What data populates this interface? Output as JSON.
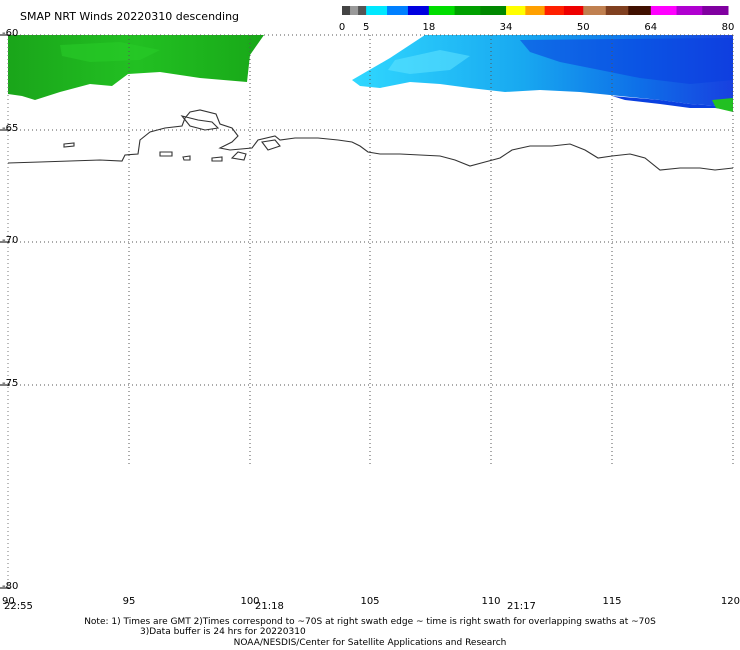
{
  "header": {
    "title": "SMAP NRT Winds  20220310 descending"
  },
  "colorbar": {
    "stops": [
      {
        "label": "0",
        "value": 0
      },
      {
        "label": "5",
        "value": 5
      },
      {
        "label": "18",
        "value": 18
      },
      {
        "label": "34",
        "value": 34
      },
      {
        "label": "50",
        "value": 50
      },
      {
        "label": "64",
        "value": 64
      },
      {
        "label": "80",
        "value": 80
      }
    ],
    "segments": [
      {
        "from": 0,
        "to": 5,
        "colors": [
          "#444444",
          "#999999",
          "#555555"
        ]
      },
      {
        "from": 5,
        "to": 18,
        "colors": [
          "#00e8ff",
          "#0080ff",
          "#0000e0"
        ]
      },
      {
        "from": 18,
        "to": 34,
        "colors": [
          "#00dd00",
          "#00a000",
          "#008800"
        ]
      },
      {
        "from": 34,
        "to": 50,
        "colors": [
          "#ffff00",
          "#ffa000",
          "#ff2000",
          "#ee0000"
        ]
      },
      {
        "from": 50,
        "to": 64,
        "colors": [
          "#c08050",
          "#804020",
          "#401000"
        ]
      },
      {
        "from": 64,
        "to": 80,
        "colors": [
          "#ff00ff",
          "#b000d0",
          "#8000a0"
        ]
      }
    ]
  },
  "map": {
    "lat_labels": [
      "-60",
      "-65",
      "-70",
      "-75",
      "-80"
    ],
    "lon_labels": [
      "90",
      "95",
      "100",
      "105",
      "110",
      "115",
      "120"
    ],
    "swath_times": [
      {
        "text": "22:55"
      },
      {
        "text": "21:18"
      },
      {
        "text": "21:17"
      }
    ]
  },
  "footer": {
    "note_line1": "Note: 1) Times are GMT 2)Times correspond to ~70S at right swath edge ~ time is right swath for overlapping swaths at ~70S",
    "note_line2": "3)Data buffer is 24 hrs for 20220310",
    "credit": "NOAA/NESDIS/Center for Satellite Applications and Research"
  },
  "colors": {
    "land_outline": "#333333",
    "grid": "#555555",
    "wind_green": "#22bb22",
    "wind_cyan": "#22c8f0",
    "wind_blue": "#1050e8"
  }
}
